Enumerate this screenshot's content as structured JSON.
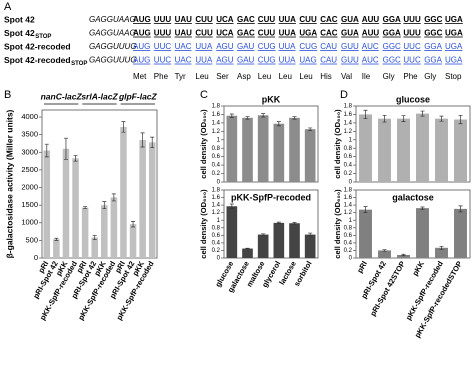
{
  "sequences": {
    "label": "A",
    "rows": [
      {
        "name": "Spot 42",
        "prefix": "GAGGUAAG",
        "color": "#000000",
        "codons": [
          "AUG",
          "UUU",
          "UAU",
          "CUU",
          "UCA",
          "GAC",
          "CUU",
          "UUA",
          "CUU",
          "CAC",
          "GUA",
          "AUU",
          "GGA",
          "UUU",
          "GGC",
          "UGA"
        ]
      },
      {
        "name": "Spot 42",
        "sub": "STOP",
        "prefix": "GAGGUAAG",
        "color": "#000000",
        "codons": [
          "AUG",
          "UUU",
          "UAU",
          "CUU",
          "UCA",
          "GAC",
          "CUU",
          "UUA",
          "UGA",
          "CAC",
          "GUA",
          "AUU",
          "GGA",
          "UUU",
          "GGC",
          "UGA"
        ]
      },
      {
        "name": "Spot 42-recoded",
        "prefix": "GAGGUUUG",
        "color": "#2a4fd6",
        "codons": [
          "AUG",
          "UUC",
          "UAC",
          "UUA",
          "AGU",
          "GAU",
          "CUG",
          "UUA",
          "CUG",
          "CAU",
          "GUU",
          "AUC",
          "GGC",
          "UUC",
          "GGA",
          "UGA"
        ]
      },
      {
        "name": "Spot 42-recoded",
        "sub": "STOP",
        "prefix": "GAGGUUUG",
        "color": "#2a4fd6",
        "codons": [
          "AUG",
          "UUC",
          "UAC",
          "UUA",
          "AGU",
          "GAU",
          "CUG",
          "UUA",
          "UAG",
          "CAU",
          "GUU",
          "AUC",
          "GGC",
          "UUC",
          "GGA",
          "UGA"
        ]
      }
    ],
    "amino_acids": [
      "Met",
      "Phe",
      "Tyr",
      "Leu",
      "Ser",
      "Asp",
      "Leu",
      "Leu",
      "Leu",
      "His",
      "Val",
      "Ile",
      "Gly",
      "Phe",
      "Gly",
      "Stop"
    ]
  },
  "chart_data": [
    {
      "type": "bar",
      "panel": "B",
      "ylabel": "β-galactosidase activity (Miller units)",
      "groups": [
        "nanC-lacZ",
        "srlA-lacZ",
        "glpF-lacZ"
      ],
      "categories": [
        "pRI",
        "pRI-Spot 42",
        "pKK",
        "pKK-SpfP-recoded",
        "pRI",
        "pRI-Spot 42",
        "pKK",
        "pKK-SpfP-recoded",
        "pRI",
        "pRI-Spot 42",
        "pKK",
        "pKK-SpfP-recoded"
      ],
      "values": [
        3050,
        530,
        3100,
        2830,
        1430,
        580,
        1500,
        1720,
        3720,
        960,
        3350,
        3280
      ],
      "errors": [
        180,
        30,
        300,
        80,
        30,
        60,
        100,
        100,
        150,
        80,
        200,
        150
      ],
      "color": "#c0c0c0",
      "ylim": [
        0,
        4200
      ],
      "yticks": [
        0,
        500,
        1000,
        1500,
        2000,
        2500,
        3000,
        3500,
        4000
      ]
    },
    {
      "type": "bar",
      "panel": "C",
      "title": "pKK",
      "ylabel": "cell density (OD₆₀₀)",
      "values": [
        1.57,
        1.52,
        1.58,
        1.38,
        1.52,
        1.25
      ],
      "errors": [
        0.04,
        0.03,
        0.04,
        0.05,
        0.03,
        0.03
      ],
      "color": "#8c8c8c",
      "ylim": [
        0,
        1.8
      ],
      "yticks": [
        0,
        0.2,
        0.4,
        0.6,
        0.8,
        1,
        1.2,
        1.4,
        1.6,
        1.8
      ]
    },
    {
      "type": "bar",
      "title": "pKK-SpfP-recoded",
      "ylabel": "cell density (OD₆₀₀)",
      "categories": [
        "glucose",
        "galactose",
        "maltose",
        "glycerol",
        "lactose",
        "sorbitol"
      ],
      "values": [
        1.37,
        0.25,
        0.62,
        0.93,
        0.92,
        0.62
      ],
      "errors": [
        0.06,
        0.01,
        0.02,
        0.02,
        0.02,
        0.04
      ],
      "color": "#444444",
      "ylim": [
        0,
        1.8
      ],
      "yticks": [
        0,
        0.2,
        0.4,
        0.6,
        0.8,
        1,
        1.2,
        1.4,
        1.6,
        1.8
      ]
    },
    {
      "type": "bar",
      "panel": "D",
      "title": "glucose",
      "ylabel": "cell density (OD₆₀₀)",
      "values": [
        1.6,
        1.5,
        1.5,
        1.62,
        1.5,
        1.48
      ],
      "errors": [
        0.1,
        0.08,
        0.07,
        0.06,
        0.06,
        0.1
      ],
      "color": "#b0b0b0",
      "ylim": [
        0,
        1.8
      ],
      "yticks": [
        0,
        0.2,
        0.4,
        0.6,
        0.8,
        1,
        1.2,
        1.4,
        1.6,
        1.8
      ]
    },
    {
      "type": "bar",
      "title": "galactose",
      "ylabel": "cell density (OD₆₀₀)",
      "categories": [
        "pRI",
        "pRI-Spot 42",
        "pRI-Spot 42STOP",
        "pKK",
        "pKK-SpfP-recoded",
        "pKK-SpfP-recodedSTOP"
      ],
      "values": [
        1.28,
        0.2,
        0.08,
        1.32,
        0.27,
        1.3
      ],
      "errors": [
        0.08,
        0.02,
        0.02,
        0.03,
        0.04,
        0.08
      ],
      "color": "#808080",
      "ylim": [
        0,
        1.8
      ],
      "yticks": [
        0,
        0.2,
        0.4,
        0.6,
        0.8,
        1,
        1.2,
        1.4,
        1.6,
        1.8
      ]
    }
  ]
}
